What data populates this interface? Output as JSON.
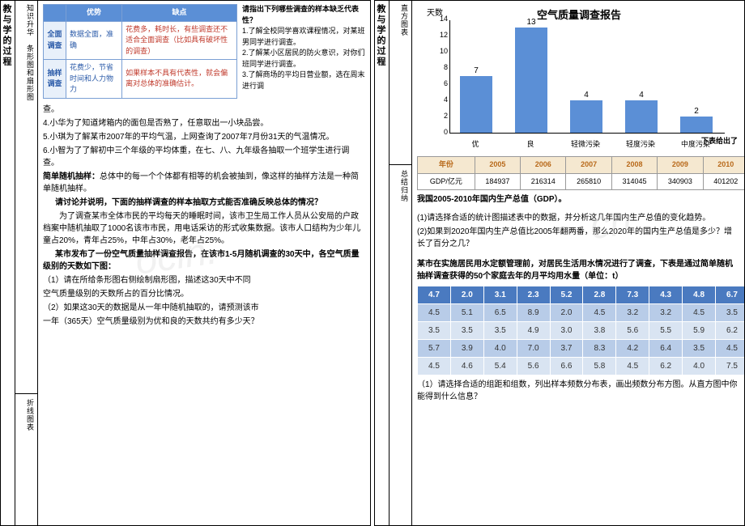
{
  "left": {
    "side1": "教与学的过程",
    "side2_top": "知识升华　条形图和扇形图",
    "side2_bot": "折线图表",
    "comp": {
      "h1": "优势",
      "h2": "缺点",
      "r1": "全面调查",
      "r1a": "数据全面，准确",
      "r1d": "花费多，耗时长，有些调查还不适合全面调查（比如具有破坏性的调查）",
      "r2": "抽样调查",
      "r2a": "花费少，节省时间和人力物力",
      "r2d": "如果样本不具有代表性，就会偏离对总体的准确估计。"
    },
    "q": {
      "title": "请指出下列哪些调查的样本缺乏代表性？",
      "q1": "1.了解全校同学喜欢课程情况，对某班男同学进行调查。",
      "q2": "2.了解某小区居民的防火意识，对你们班同学进行调查。",
      "q3": "3.了解商场的平均日营业额，选在周末进行调"
    },
    "p_cha": "查。",
    "p4": "4.小华为了知道烤箱内的面包是否熟了，任意取出一小块品尝。",
    "p5": "5.小琪为了解某市2007年的平均气温，上网查询了2007年7月份31天的气温情况。",
    "p6": "6.小智为了了解初中三个年级的平均体重，在七、八、九年级各抽取一个班学生进行调查。",
    "srs_t": "简单随机抽样：",
    "srs": "总体中的每一个个体都有相等的机会被抽到，像这样的抽样方法是一种简单随机抽样。",
    "disc_t": "请讨论并说明，下面的抽样调查的样本抽取方式能否准确反映总体的情况？",
    "disc": "　　为了调查某市全体市民的平均每天的睡眠时间，该市卫生局工作人员从公安局的户政档案中随机抽取了1000名该市市民，用电话采访的形式收集数据。该市人口结构为少年儿童占20%，青年占25%，中年占30%，老年占25%。",
    "air_t": "某市发布了一份空气质量抽样调查报告，在该市1-5月随机调查的30天中，各空气质量级别的天数如下图：",
    "air1": "（1）请在所给条形图右侧绘制扇形图，描述这30天中不同",
    "air1b": "空气质量级别的天数所占的百分比情况。",
    "air2": "（2）如果这30天的数据是从一年中随机抽取的，请预测该市",
    "air2b": "一年（365天）空气质量级别为优和良的天数共约有多少天？"
  },
  "right": {
    "side1": "教与学的过程",
    "side2_top": "直方图表",
    "side2_bot": "总结归纳",
    "chart": {
      "title": "空气质量调查报告",
      "ylabel": "天数",
      "cats": [
        "优",
        "良",
        "轻微污染",
        "轻度污染",
        "中度污染"
      ],
      "vals": [
        7,
        13,
        4,
        4,
        2
      ],
      "ymax": 14,
      "ystep": 2,
      "bar_color": "#5b8fd6"
    },
    "note1": "下表给出了",
    "gdp": {
      "h": "年份",
      "years": [
        "2005",
        "2006",
        "2007",
        "2008",
        "2009",
        "2010"
      ],
      "r": "GDP/亿元",
      "vals": [
        "184937",
        "216314",
        "265810",
        "314045",
        "340903",
        "401202"
      ]
    },
    "gdp_t": "我国2005-2010年国内生产总值（GDP）。",
    "gq1": "(1)请选择合适的统计图描述表中的数据，并分析这几年国内生产总值的变化趋势。",
    "gq2": "(2)如果到2020年国内生产总值比2005年翻两番，那么2020年的国内生产总值是多少？增长了百分之几？",
    "water_t": "某市在实施居民用水定额管理前，对居民生活用水情况进行了调查，下表是通过简单随机抽样调查获得的50个家庭去年的月平均用水量（单位：t）",
    "data": {
      "header": [
        "4.7",
        "2.0",
        "3.1",
        "2.3",
        "5.2",
        "2.8",
        "7.3",
        "4.3",
        "4.8",
        "6.7"
      ],
      "rows": [
        [
          "4.5",
          "5.1",
          "6.5",
          "8.9",
          "2.0",
          "4.5",
          "3.2",
          "3.2",
          "4.5",
          "3.5"
        ],
        [
          "3.5",
          "3.5",
          "3.5",
          "4.9",
          "3.0",
          "3.8",
          "5.6",
          "5.5",
          "5.9",
          "6.2"
        ],
        [
          "5.7",
          "3.9",
          "4.0",
          "7.0",
          "3.7",
          "8.3",
          "4.2",
          "6.4",
          "3.5",
          "4.5"
        ],
        [
          "4.5",
          "4.6",
          "5.4",
          "5.6",
          "6.6",
          "5.8",
          "4.5",
          "6.2",
          "4.0",
          "7.5"
        ]
      ]
    },
    "fq": "（1）请选择合适的组距和组数，列出样本频数分布表，画出频数分布方图。从直方图中你能得到什么信息？"
  }
}
